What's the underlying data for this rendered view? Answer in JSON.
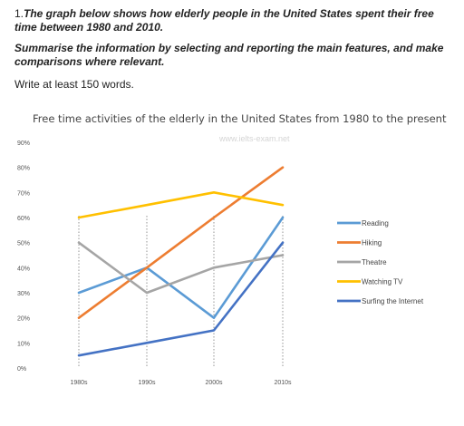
{
  "task": {
    "title_number": "1.",
    "title_text": "The graph below shows how elderly people in the United States spent their free time between 1980 and 2010.",
    "instruction": "Summarise the information by selecting and reporting the main features, and make comparisons where relevant.",
    "word_count": "Write at least 150 words."
  },
  "chart_data": {
    "type": "line",
    "title": "Free time activities of the elderly in the United States from 1980 to the present",
    "watermark": "www.ielts-exam.net",
    "categories": [
      "1980s",
      "1990s",
      "2000s",
      "2010s"
    ],
    "y_ticks": [
      "0%",
      "10%",
      "20%",
      "30%",
      "40%",
      "50%",
      "60%",
      "70%",
      "80%",
      "90%"
    ],
    "ylim": [
      0,
      90
    ],
    "grid": "vertical dotted lines at categories",
    "legend_position": "right",
    "series": [
      {
        "name": "Reading",
        "color": "#5b9bd5",
        "values": [
          30,
          40,
          20,
          60
        ]
      },
      {
        "name": "Hiking",
        "color": "#ed7d31",
        "values": [
          20,
          40,
          60,
          80
        ]
      },
      {
        "name": "Theatre",
        "color": "#a5a5a5",
        "values": [
          50,
          30,
          40,
          45
        ]
      },
      {
        "name": "Watching TV",
        "color": "#ffc000",
        "values": [
          60,
          65,
          70,
          65
        ]
      },
      {
        "name": "Surfing the Internet",
        "color": "#4472c4",
        "values": [
          5,
          10,
          15,
          50
        ]
      }
    ]
  }
}
